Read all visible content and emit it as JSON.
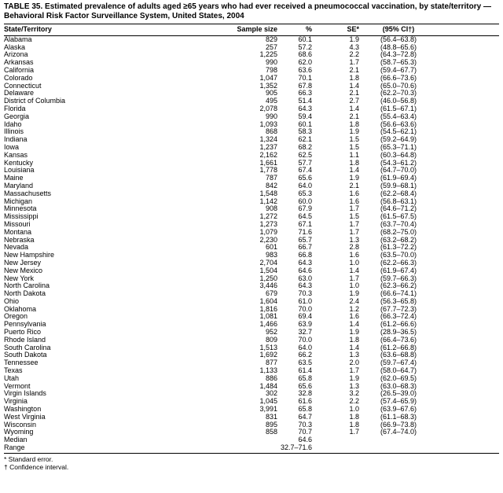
{
  "title_line1": "TABLE 35. Estimated prevalence of adults aged ≥65 years who had ever received a pneumococcal vaccination, by state/territory —",
  "title_line2": "Behavioral Risk Factor Surveillance System, United States, 2004",
  "table": {
    "columns": [
      "State/Territory",
      "Sample size",
      "%",
      "SE*",
      "(95% CI†)"
    ],
    "rows": [
      [
        "Alabama",
        "829",
        "60.1",
        "1.9",
        "(56.4–63.8)"
      ],
      [
        "Alaska",
        "257",
        "57.2",
        "4.3",
        "(48.8–65.6)"
      ],
      [
        "Arizona",
        "1,225",
        "68.6",
        "2.2",
        "(64.3–72.8)"
      ],
      [
        "Arkansas",
        "990",
        "62.0",
        "1.7",
        "(58.7–65.3)"
      ],
      [
        "California",
        "798",
        "63.6",
        "2.1",
        "(59.4–67.7)"
      ],
      [
        "Colorado",
        "1,047",
        "70.1",
        "1.8",
        "(66.6–73.6)"
      ],
      [
        "Connecticut",
        "1,352",
        "67.8",
        "1.4",
        "(65.0–70.6)"
      ],
      [
        "Delaware",
        "905",
        "66.3",
        "2.1",
        "(62.2–70.3)"
      ],
      [
        "District of Columbia",
        "495",
        "51.4",
        "2.7",
        "(46.0–56.8)"
      ],
      [
        "Florida",
        "2,078",
        "64.3",
        "1.4",
        "(61.5–67.1)"
      ],
      [
        "Georgia",
        "990",
        "59.4",
        "2.1",
        "(55.4–63.4)"
      ],
      [
        "Idaho",
        "1,093",
        "60.1",
        "1.8",
        "(56.6–63.6)"
      ],
      [
        "Illinois",
        "868",
        "58.3",
        "1.9",
        "(54.5–62.1)"
      ],
      [
        "Indiana",
        "1,324",
        "62.1",
        "1.5",
        "(59.2–64.9)"
      ],
      [
        "Iowa",
        "1,237",
        "68.2",
        "1.5",
        "(65.3–71.1)"
      ],
      [
        "Kansas",
        "2,162",
        "62.5",
        "1.1",
        "(60.3–64.8)"
      ],
      [
        "Kentucky",
        "1,661",
        "57.7",
        "1.8",
        "(54.3–61.2)"
      ],
      [
        "Louisiana",
        "1,778",
        "67.4",
        "1.4",
        "(64.7–70.0)"
      ],
      [
        "Maine",
        "787",
        "65.6",
        "1.9",
        "(61.9–69.4)"
      ],
      [
        "Maryland",
        "842",
        "64.0",
        "2.1",
        "(59.9–68.1)"
      ],
      [
        "Massachusetts",
        "1,548",
        "65.3",
        "1.6",
        "(62.2–68.4)"
      ],
      [
        "Michigan",
        "1,142",
        "60.0",
        "1.6",
        "(56.8–63.1)"
      ],
      [
        "Minnesota",
        "908",
        "67.9",
        "1.7",
        "(64.6–71.2)"
      ],
      [
        "Mississippi",
        "1,272",
        "64.5",
        "1.5",
        "(61.5–67.5)"
      ],
      [
        "Missouri",
        "1,273",
        "67.1",
        "1.7",
        "(63.7–70.4)"
      ],
      [
        "Montana",
        "1,079",
        "71.6",
        "1.7",
        "(68.2–75.0)"
      ],
      [
        "Nebraska",
        "2,230",
        "65.7",
        "1.3",
        "(63.2–68.2)"
      ],
      [
        "Nevada",
        "601",
        "66.7",
        "2.8",
        "(61.3–72.2)"
      ],
      [
        "New Hampshire",
        "983",
        "66.8",
        "1.6",
        "(63.5–70.0)"
      ],
      [
        "New Jersey",
        "2,704",
        "64.3",
        "1.0",
        "(62.2–66.3)"
      ],
      [
        "New Mexico",
        "1,504",
        "64.6",
        "1.4",
        "(61.9–67.4)"
      ],
      [
        "New York",
        "1,250",
        "63.0",
        "1.7",
        "(59.7–66.3)"
      ],
      [
        "North Carolina",
        "3,446",
        "64.3",
        "1.0",
        "(62.3–66.2)"
      ],
      [
        "North Dakota",
        "679",
        "70.3",
        "1.9",
        "(66.6–74.1)"
      ],
      [
        "Ohio",
        "1,604",
        "61.0",
        "2.4",
        "(56.3–65.8)"
      ],
      [
        "Oklahoma",
        "1,816",
        "70.0",
        "1.2",
        "(67.7–72.3)"
      ],
      [
        "Oregon",
        "1,081",
        "69.4",
        "1.6",
        "(66.3–72.4)"
      ],
      [
        "Pennsylvania",
        "1,466",
        "63.9",
        "1.4",
        "(61.2–66.6)"
      ],
      [
        "Puerto Rico",
        "952",
        "32.7",
        "1.9",
        "(28.9–36.5)"
      ],
      [
        "Rhode Island",
        "809",
        "70.0",
        "1.8",
        "(66.4–73.6)"
      ],
      [
        "South Carolina",
        "1,513",
        "64.0",
        "1.4",
        "(61.2–66.8)"
      ],
      [
        "South Dakota",
        "1,692",
        "66.2",
        "1.3",
        "(63.6–68.8)"
      ],
      [
        "Tennessee",
        "877",
        "63.5",
        "2.0",
        "(59.7–67.4)"
      ],
      [
        "Texas",
        "1,133",
        "61.4",
        "1.7",
        "(58.0–64.7)"
      ],
      [
        "Utah",
        "886",
        "65.8",
        "1.9",
        "(62.0–69.5)"
      ],
      [
        "Vermont",
        "1,484",
        "65.6",
        "1.3",
        "(63.0–68.3)"
      ],
      [
        "Virgin Islands",
        "302",
        "32.8",
        "3.2",
        "(26.5–39.0)"
      ],
      [
        "Virginia",
        "1,045",
        "61.6",
        "2.2",
        "(57.4–65.9)"
      ],
      [
        "Washington",
        "3,991",
        "65.8",
        "1.0",
        "(63.9–67.6)"
      ],
      [
        "West Virginia",
        "831",
        "64.7",
        "1.8",
        "(61.1–68.3)"
      ],
      [
        "Wisconsin",
        "895",
        "70.3",
        "1.8",
        "(66.9–73.8)"
      ],
      [
        "Wyoming",
        "858",
        "70.7",
        "1.7",
        "(67.4–74.0)"
      ],
      [
        "Median",
        "",
        "64.6",
        "",
        ""
      ],
      [
        "Range",
        "",
        "32.7–71.6",
        "",
        ""
      ]
    ]
  },
  "footnotes": [
    "* Standard error.",
    "† Confidence interval."
  ]
}
